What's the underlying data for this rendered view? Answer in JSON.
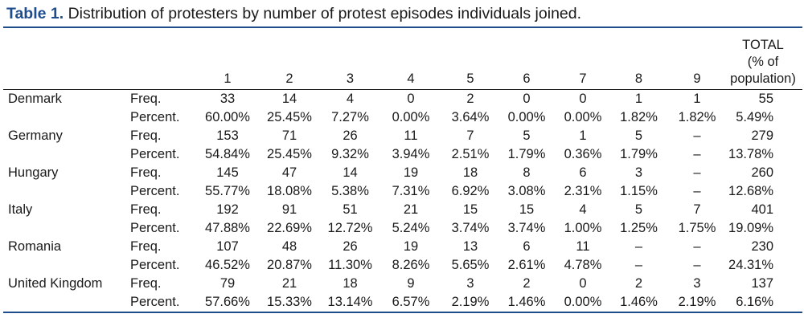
{
  "caption": {
    "label": "Table 1.",
    "text": "Distribution of protesters by number of protest episodes individuals joined."
  },
  "header": {
    "episodes": [
      "1",
      "2",
      "3",
      "4",
      "5",
      "6",
      "7",
      "8",
      "9"
    ],
    "total_line1": "TOTAL",
    "total_line2": "(% of",
    "total_line3": "population)"
  },
  "rows": [
    {
      "country": "Denmark",
      "freq_label": "Freq.",
      "pct_label": "Percent.",
      "freq": [
        "33",
        "14",
        "4",
        "0",
        "2",
        "0",
        "0",
        "1",
        "1"
      ],
      "freq_total": "55",
      "pct": [
        "60.00%",
        "25.45%",
        "7.27%",
        "0.00%",
        "3.64%",
        "0.00%",
        "0.00%",
        "1.82%",
        "1.82%"
      ],
      "pct_total": "5.49%"
    },
    {
      "country": "Germany",
      "freq_label": "Freq.",
      "pct_label": "Percent.",
      "freq": [
        "153",
        "71",
        "26",
        "11",
        "7",
        "5",
        "1",
        "5",
        "–"
      ],
      "freq_total": "279",
      "pct": [
        "54.84%",
        "25.45%",
        "9.32%",
        "3.94%",
        "2.51%",
        "1.79%",
        "0.36%",
        "1.79%",
        "–"
      ],
      "pct_total": "13.78%"
    },
    {
      "country": "Hungary",
      "freq_label": "Freq.",
      "pct_label": "Percent.",
      "freq": [
        "145",
        "47",
        "14",
        "19",
        "18",
        "8",
        "6",
        "3",
        "–"
      ],
      "freq_total": "260",
      "pct": [
        "55.77%",
        "18.08%",
        "5.38%",
        "7.31%",
        "6.92%",
        "3.08%",
        "2.31%",
        "1.15%",
        "–"
      ],
      "pct_total": "12.68%"
    },
    {
      "country": "Italy",
      "freq_label": "Freq.",
      "pct_label": "Percent.",
      "freq": [
        "192",
        "91",
        "51",
        "21",
        "15",
        "15",
        "4",
        "5",
        "7"
      ],
      "freq_total": "401",
      "pct": [
        "47.88%",
        "22.69%",
        "12.72%",
        "5.24%",
        "3.74%",
        "3.74%",
        "1.00%",
        "1.25%",
        "1.75%"
      ],
      "pct_total": "19.09%"
    },
    {
      "country": "Romania",
      "freq_label": "Freq.",
      "pct_label": "Percent.",
      "freq": [
        "107",
        "48",
        "26",
        "19",
        "13",
        "6",
        "11",
        "–",
        "–"
      ],
      "freq_total": "230",
      "pct": [
        "46.52%",
        "20.87%",
        "11.30%",
        "8.26%",
        "5.65%",
        "2.61%",
        "4.78%",
        "–",
        "–"
      ],
      "pct_total": "24.31%"
    },
    {
      "country": "United Kingdom",
      "freq_label": "Freq.",
      "pct_label": "Percent.",
      "freq": [
        "79",
        "21",
        "18",
        "9",
        "3",
        "2",
        "0",
        "2",
        "3"
      ],
      "freq_total": "137",
      "pct": [
        "57.66%",
        "15.33%",
        "13.14%",
        "6.57%",
        "2.19%",
        "1.46%",
        "0.00%",
        "1.46%",
        "2.19%"
      ],
      "pct_total": "6.16%"
    }
  ]
}
